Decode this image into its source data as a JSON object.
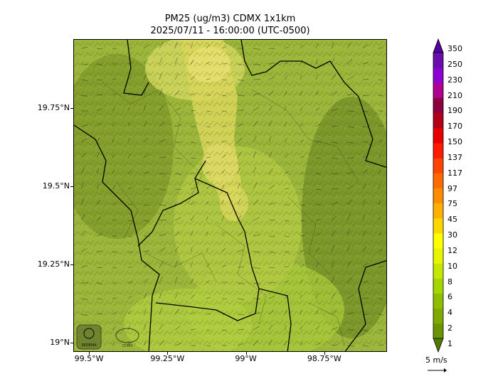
{
  "title": {
    "line1": "PM25 (ug/m3) CDMX 1x1km",
    "line2": "2025/07/11 - 16:00:00 (UTC-0500)"
  },
  "axes": {
    "y_ticks": [
      {
        "label": "19.75°N",
        "lat": 19.75
      },
      {
        "label": "19.5°N",
        "lat": 19.5
      },
      {
        "label": "19.25°N",
        "lat": 19.25
      },
      {
        "label": "19°N",
        "lat": 19.0
      }
    ],
    "x_ticks": [
      {
        "label": "99.5°W",
        "lon": -99.5
      },
      {
        "label": "99.25°W",
        "lon": -99.25
      },
      {
        "label": "99°W",
        "lon": -99.0
      },
      {
        "label": "98.75°W",
        "lon": -98.75
      }
    ],
    "lon_range": [
      -99.55,
      -98.55
    ],
    "lat_range": [
      18.97,
      19.97
    ]
  },
  "colorbar": {
    "labels": [
      "1",
      "2",
      "4",
      "6",
      "8",
      "10",
      "12",
      "30",
      "45",
      "75",
      "97",
      "117",
      "137",
      "150",
      "170",
      "190",
      "210",
      "230",
      "250",
      "350"
    ],
    "colors": [
      "#4f7a00",
      "#6b9400",
      "#7fa800",
      "#8fbf00",
      "#a6d600",
      "#c6e800",
      "#e6f500",
      "#ffff00",
      "#ffd700",
      "#ffb000",
      "#ff8c00",
      "#ff6a00",
      "#ff4500",
      "#ff1a00",
      "#e60000",
      "#b30019",
      "#8c0040",
      "#b0008f",
      "#8f00d4",
      "#6a0dad",
      "#5200a0"
    ]
  },
  "wind": {
    "label": "5 m/s"
  },
  "logos": {
    "logo1": "SEDEMA",
    "logo2": "CDMX"
  }
}
